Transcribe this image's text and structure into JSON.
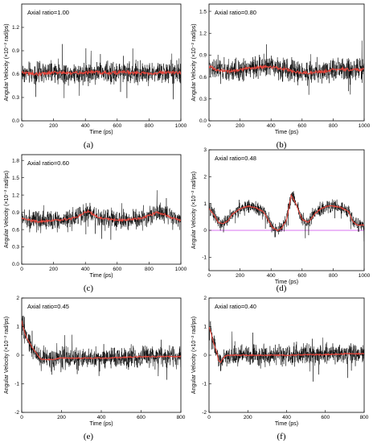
{
  "chart_data": [
    {
      "type": "line",
      "panel_label": "(a)",
      "annotation": "Axial ratio=1.00",
      "xlabel": "Time (ps)",
      "ylabel": "Angular Velocity (×10⁻² rad/ps)",
      "xlim": [
        0,
        1000
      ],
      "ylim": [
        0,
        1.5
      ],
      "xticks": [
        0,
        200,
        400,
        600,
        800,
        1000
      ],
      "yticks": [
        0.0,
        0.3,
        0.6,
        0.9,
        1.2
      ],
      "ytick_labels": [
        "0.0",
        "0.3",
        "0.6",
        "0.9",
        "1.2"
      ],
      "reference_line": null,
      "series": [
        {
          "role": "raw",
          "color": "#000000",
          "x": [
            0,
            50,
            100,
            150,
            200,
            250,
            300,
            350,
            400,
            450,
            500,
            550,
            600,
            650,
            700,
            750,
            800,
            850,
            900,
            950,
            1000
          ],
          "y": [
            0.62,
            0.61,
            0.6,
            0.61,
            0.62,
            0.62,
            0.61,
            0.62,
            0.62,
            0.63,
            0.62,
            0.61,
            0.62,
            0.63,
            0.62,
            0.61,
            0.61,
            0.62,
            0.62,
            0.62,
            0.62
          ],
          "noise": 0.2
        },
        {
          "role": "smoothed",
          "color": "#e8463c",
          "x": [
            0,
            50,
            100,
            150,
            200,
            250,
            300,
            350,
            400,
            450,
            500,
            550,
            600,
            650,
            700,
            750,
            800,
            850,
            900,
            950,
            1000
          ],
          "y": [
            0.62,
            0.61,
            0.6,
            0.61,
            0.62,
            0.62,
            0.61,
            0.62,
            0.62,
            0.63,
            0.62,
            0.61,
            0.62,
            0.63,
            0.62,
            0.61,
            0.61,
            0.62,
            0.62,
            0.62,
            0.62
          ]
        }
      ]
    },
    {
      "type": "line",
      "panel_label": "(b)",
      "annotation": "Axial ratio=0.80",
      "xlabel": "Time (ps)",
      "ylabel": "Angular Velocity (×10⁻² rad/ps)",
      "xlim": [
        0,
        1000
      ],
      "ylim": [
        0,
        1.6
      ],
      "xticks": [
        0,
        200,
        400,
        600,
        800,
        1000
      ],
      "yticks": [
        0.0,
        0.3,
        0.6,
        0.9,
        1.2,
        1.5
      ],
      "ytick_labels": [
        "0.0",
        "0.3",
        "0.6",
        "0.9",
        "1.2",
        "1.5"
      ],
      "reference_line": null,
      "series": [
        {
          "role": "raw",
          "color": "#000000",
          "x": [
            0,
            50,
            100,
            150,
            200,
            250,
            300,
            350,
            400,
            450,
            500,
            550,
            600,
            650,
            700,
            750,
            800,
            850,
            900,
            950,
            1000
          ],
          "y": [
            0.75,
            0.7,
            0.68,
            0.68,
            0.7,
            0.72,
            0.73,
            0.74,
            0.74,
            0.72,
            0.7,
            0.68,
            0.66,
            0.66,
            0.67,
            0.68,
            0.7,
            0.71,
            0.7,
            0.7,
            0.7
          ],
          "noise": 0.22
        },
        {
          "role": "smoothed",
          "color": "#e8463c",
          "x": [
            0,
            50,
            100,
            150,
            200,
            250,
            300,
            350,
            400,
            450,
            500,
            550,
            600,
            650,
            700,
            750,
            800,
            850,
            900,
            950,
            1000
          ],
          "y": [
            0.75,
            0.7,
            0.68,
            0.68,
            0.7,
            0.72,
            0.73,
            0.74,
            0.74,
            0.72,
            0.7,
            0.68,
            0.66,
            0.66,
            0.67,
            0.68,
            0.7,
            0.71,
            0.7,
            0.7,
            0.7
          ]
        }
      ]
    },
    {
      "type": "line",
      "panel_label": "(c)",
      "annotation": "Axial ratio=0.60",
      "xlabel": "Time (ps)",
      "ylabel": "Angular Velocity (×10⁻² rad/ps)",
      "xlim": [
        0,
        1000
      ],
      "ylim": [
        0,
        1.9
      ],
      "xticks": [
        0,
        200,
        400,
        600,
        800,
        1000
      ],
      "yticks": [
        0.0,
        0.3,
        0.6,
        0.9,
        1.2,
        1.5,
        1.8
      ],
      "ytick_labels": [
        "0.0",
        "0.3",
        "0.6",
        "0.9",
        "1.2",
        "1.5",
        "1.8"
      ],
      "reference_line": null,
      "series": [
        {
          "role": "raw",
          "color": "#000000",
          "x": [
            0,
            50,
            100,
            150,
            200,
            250,
            300,
            350,
            400,
            420,
            450,
            500,
            550,
            600,
            650,
            700,
            750,
            800,
            850,
            900,
            950,
            1000
          ],
          "y": [
            0.8,
            0.76,
            0.74,
            0.75,
            0.76,
            0.77,
            0.78,
            0.82,
            0.9,
            0.92,
            0.86,
            0.8,
            0.78,
            0.76,
            0.77,
            0.78,
            0.8,
            0.84,
            0.9,
            0.86,
            0.8,
            0.76
          ],
          "noise": 0.24
        },
        {
          "role": "smoothed",
          "color": "#e8463c",
          "x": [
            0,
            50,
            100,
            150,
            200,
            250,
            300,
            350,
            400,
            420,
            450,
            500,
            550,
            600,
            650,
            700,
            750,
            800,
            850,
            900,
            950,
            1000
          ],
          "y": [
            0.8,
            0.76,
            0.74,
            0.75,
            0.76,
            0.77,
            0.78,
            0.82,
            0.9,
            0.92,
            0.86,
            0.8,
            0.78,
            0.76,
            0.77,
            0.78,
            0.8,
            0.84,
            0.9,
            0.86,
            0.8,
            0.76
          ]
        }
      ]
    },
    {
      "type": "line",
      "panel_label": "(d)",
      "annotation": "Axial ratio=0.48",
      "xlabel": "Time (ps)",
      "ylabel": "Angular Velocity (×10⁻² rad/ps)",
      "xlim": [
        0,
        1000
      ],
      "ylim": [
        -1.5,
        3
      ],
      "xticks": [
        0,
        200,
        400,
        600,
        800,
        1000
      ],
      "yticks": [
        -1,
        0,
        1,
        2,
        3
      ],
      "ytick_labels": [
        "-1",
        "0",
        "1",
        "2",
        "3"
      ],
      "reference_line": {
        "y": 0,
        "color": "#cc44ee"
      },
      "series": [
        {
          "role": "raw",
          "color": "#000000",
          "x": [
            0,
            30,
            60,
            90,
            120,
            150,
            200,
            250,
            300,
            350,
            380,
            410,
            440,
            470,
            500,
            530,
            560,
            600,
            640,
            680,
            720,
            760,
            800,
            850,
            900,
            930,
            960,
            1000
          ],
          "y": [
            0.8,
            0.6,
            0.3,
            0.25,
            0.35,
            0.6,
            0.8,
            0.9,
            0.85,
            0.7,
            0.4,
            0.1,
            0.0,
            0.1,
            0.4,
            1.3,
            1.0,
            0.4,
            0.3,
            0.6,
            0.8,
            0.9,
            0.9,
            0.85,
            0.7,
            0.3,
            0.2,
            0.2
          ],
          "noise": 0.35
        },
        {
          "role": "smoothed",
          "color": "#e8463c",
          "x": [
            0,
            30,
            60,
            90,
            120,
            150,
            200,
            250,
            300,
            350,
            380,
            410,
            440,
            470,
            500,
            530,
            560,
            600,
            640,
            680,
            720,
            760,
            800,
            850,
            900,
            930,
            960,
            1000
          ],
          "y": [
            0.8,
            0.6,
            0.3,
            0.25,
            0.35,
            0.6,
            0.8,
            0.9,
            0.85,
            0.7,
            0.4,
            0.1,
            0.0,
            0.1,
            0.4,
            1.3,
            1.0,
            0.4,
            0.3,
            0.6,
            0.8,
            0.9,
            0.9,
            0.85,
            0.7,
            0.3,
            0.2,
            0.2
          ]
        }
      ]
    },
    {
      "type": "line",
      "panel_label": "(e)",
      "annotation": "Axial ratio=0.45",
      "xlabel": "Time (ps)",
      "ylabel": "Angular Velocity (×10⁻² rad/ps)",
      "xlim": [
        0,
        800
      ],
      "ylim": [
        -2,
        2
      ],
      "xticks": [
        0,
        200,
        400,
        600,
        800
      ],
      "yticks": [
        -2,
        -1,
        0,
        1,
        2
      ],
      "ytick_labels": [
        "-2",
        "-1",
        "0",
        "1",
        "2"
      ],
      "reference_line": null,
      "series": [
        {
          "role": "raw",
          "color": "#000000",
          "x": [
            0,
            10,
            25,
            50,
            75,
            100,
            150,
            200,
            300,
            400,
            500,
            600,
            700,
            800
          ],
          "y": [
            1.2,
            0.9,
            0.6,
            0.3,
            0.05,
            -0.15,
            -0.15,
            -0.1,
            -0.1,
            -0.1,
            -0.08,
            -0.05,
            -0.05,
            -0.05
          ],
          "noise": 0.55
        },
        {
          "role": "smoothed",
          "color": "#e8463c",
          "x": [
            0,
            10,
            25,
            50,
            75,
            100,
            150,
            200,
            300,
            400,
            500,
            600,
            700,
            800
          ],
          "y": [
            1.2,
            0.9,
            0.6,
            0.3,
            0.05,
            -0.15,
            -0.15,
            -0.1,
            -0.1,
            -0.1,
            -0.08,
            -0.05,
            -0.05,
            -0.05
          ]
        }
      ]
    },
    {
      "type": "line",
      "panel_label": "(f)",
      "annotation": "Axial ratio=0.40",
      "xlabel": "Time (ps)",
      "ylabel": "Angular Velocity (×10⁻² rad/ps)",
      "xlim": [
        0,
        800
      ],
      "ylim": [
        -2,
        2
      ],
      "xticks": [
        0,
        200,
        400,
        600,
        800
      ],
      "yticks": [
        -2,
        -1,
        0,
        1,
        2
      ],
      "ytick_labels": [
        "-2",
        "-1",
        "0",
        "1",
        "2"
      ],
      "reference_line": null,
      "series": [
        {
          "role": "raw",
          "color": "#000000",
          "x": [
            0,
            10,
            20,
            30,
            40,
            50,
            60,
            70,
            80,
            100,
            150,
            200,
            300,
            400,
            500,
            600,
            700,
            800
          ],
          "y": [
            1.0,
            0.8,
            0.5,
            0.3,
            0.1,
            -0.2,
            -0.25,
            -0.15,
            -0.05,
            0.0,
            0.0,
            0.0,
            0.0,
            0.0,
            0.02,
            0.02,
            0.05,
            0.05
          ],
          "noise": 0.5
        },
        {
          "role": "smoothed",
          "color": "#e8463c",
          "x": [
            0,
            10,
            20,
            30,
            40,
            50,
            60,
            70,
            80,
            100,
            150,
            200,
            300,
            400,
            500,
            600,
            700,
            800
          ],
          "y": [
            1.0,
            0.8,
            0.5,
            0.3,
            0.1,
            -0.2,
            -0.25,
            -0.15,
            -0.05,
            0.0,
            0.0,
            0.0,
            0.0,
            0.0,
            0.02,
            0.02,
            0.05,
            0.05
          ]
        }
      ]
    }
  ]
}
